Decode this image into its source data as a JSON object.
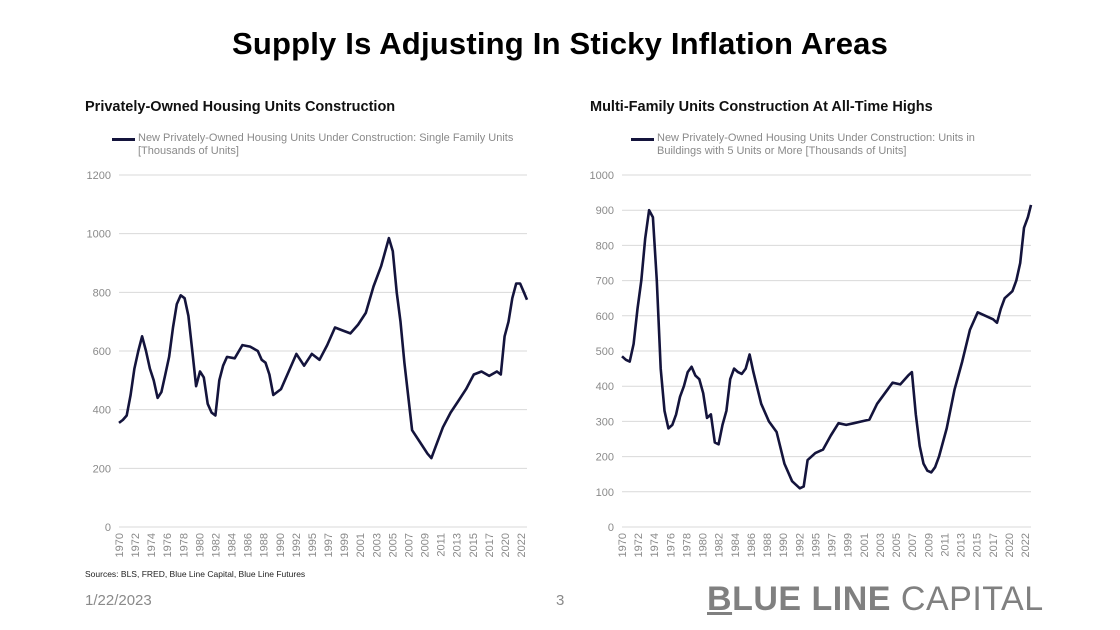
{
  "page": {
    "title": "Supply Is Adjusting In Sticky Inflation Areas",
    "sources": "Sources: BLS, FRED, Blue Line Capital, Blue Line Futures",
    "date": "1/22/2023",
    "page_number": "3",
    "brand": {
      "bold": "BLUE LINE",
      "light": " CAPITAL"
    },
    "line_color": "#14143c",
    "grid_color": "#d9d9d9"
  },
  "chart_data": [
    {
      "type": "line",
      "title": "Privately-Owned Housing Units Construction",
      "legend": "New Privately-Owned Housing Units Under Construction: Single Family Units [Thousands of Units]",
      "legend_placement": "top-left",
      "xlabel": "",
      "ylabel": "",
      "ylim": [
        0,
        1200
      ],
      "yticks": [
        0,
        200,
        400,
        600,
        800,
        1000,
        1200
      ],
      "xlim": [
        1970,
        2022.9
      ],
      "xtick_labels": [
        "1970",
        "1972",
        "1974",
        "1976",
        "1978",
        "1980",
        "1982",
        "1984",
        "1986",
        "1988",
        "1990",
        "1992",
        "1995",
        "1997",
        "1999",
        "2001",
        "2003",
        "2005",
        "2007",
        "2009",
        "2011",
        "2013",
        "2015",
        "2017",
        "2020",
        "2022"
      ],
      "grid": true,
      "series": [
        {
          "name": "Single Family Units",
          "x": [
            1970,
            1970.5,
            1971,
            1971.5,
            1972,
            1972.5,
            1973,
            1973.5,
            1974,
            1974.5,
            1975,
            1975.5,
            1976,
            1976.5,
            1977,
            1977.5,
            1978,
            1978.5,
            1979,
            1979.5,
            1980,
            1980.5,
            1981,
            1981.5,
            1982,
            1982.5,
            1983,
            1983.5,
            1984,
            1985,
            1986,
            1987,
            1988,
            1988.5,
            1989,
            1989.5,
            1990,
            1991,
            1992,
            1993,
            1994,
            1995,
            1996,
            1997,
            1998,
            1999,
            2000,
            2001,
            2002,
            2003,
            2004,
            2005,
            2005.5,
            2006,
            2006.5,
            2007,
            2008,
            2009,
            2010,
            2010.5,
            2011,
            2012,
            2013,
            2014,
            2015,
            2016,
            2017,
            2018,
            2019,
            2019.5,
            2020,
            2020.5,
            2021,
            2021.5,
            2022,
            2022.5,
            2022.9
          ],
          "values": [
            355,
            365,
            380,
            450,
            540,
            600,
            650,
            600,
            540,
            500,
            440,
            460,
            520,
            580,
            680,
            760,
            790,
            780,
            720,
            600,
            480,
            530,
            510,
            420,
            390,
            380,
            500,
            550,
            580,
            575,
            620,
            615,
            600,
            570,
            560,
            520,
            450,
            470,
            530,
            590,
            550,
            590,
            570,
            620,
            680,
            670,
            660,
            690,
            730,
            820,
            890,
            985,
            940,
            800,
            700,
            560,
            330,
            290,
            250,
            235,
            270,
            340,
            390,
            430,
            470,
            520,
            530,
            515,
            530,
            520,
            650,
            700,
            780,
            830,
            830,
            800,
            775
          ]
        }
      ]
    },
    {
      "type": "line",
      "title": "Multi-Family Units Construction At All-Time Highs",
      "legend": "New Privately-Owned Housing Units Under Construction: Units in Buildings with 5 Units or More [Thousands of Units]",
      "legend_placement": "top-left",
      "xlabel": "",
      "ylabel": "",
      "ylim": [
        0,
        1000
      ],
      "yticks": [
        0,
        100,
        200,
        300,
        400,
        500,
        600,
        700,
        800,
        900,
        1000
      ],
      "xlim": [
        1970,
        2022.9
      ],
      "xtick_labels": [
        "1970",
        "1972",
        "1974",
        "1976",
        "1978",
        "1980",
        "1982",
        "1984",
        "1986",
        "1988",
        "1990",
        "1992",
        "1995",
        "1997",
        "1999",
        "2001",
        "2003",
        "2005",
        "2007",
        "2009",
        "2011",
        "2013",
        "2015",
        "2017",
        "2020",
        "2022"
      ],
      "grid": true,
      "series": [
        {
          "name": "Units in Buildings with 5 Units or More",
          "x": [
            1970,
            1970.5,
            1971,
            1971.5,
            1972,
            1972.5,
            1973,
            1973.5,
            1974,
            1974.5,
            1975,
            1975.5,
            1976,
            1976.5,
            1977,
            1977.5,
            1978,
            1978.5,
            1979,
            1979.5,
            1980,
            1980.5,
            1981,
            1981.5,
            1982,
            1982.5,
            1983,
            1983.5,
            1984,
            1984.5,
            1985,
            1985.5,
            1986,
            1986.5,
            1987,
            1988,
            1989,
            1990,
            1991,
            1992,
            1992.5,
            1993,
            1993.5,
            1994,
            1995,
            1996,
            1997,
            1998,
            1999,
            2000,
            2001,
            2002,
            2003,
            2004,
            2005,
            2006,
            2007,
            2007.5,
            2008,
            2008.5,
            2009,
            2009.5,
            2010,
            2010.5,
            2011,
            2012,
            2013,
            2014,
            2015,
            2016,
            2017,
            2018,
            2018.5,
            2019,
            2019.5,
            2020,
            2020.5,
            2021,
            2021.5,
            2022,
            2022.5,
            2022.9
          ],
          "values": [
            485,
            475,
            470,
            520,
            620,
            700,
            820,
            900,
            880,
            700,
            450,
            330,
            280,
            290,
            320,
            370,
            400,
            440,
            455,
            430,
            420,
            380,
            310,
            320,
            240,
            235,
            290,
            330,
            420,
            450,
            440,
            435,
            450,
            490,
            440,
            350,
            300,
            270,
            180,
            130,
            120,
            110,
            115,
            190,
            210,
            220,
            260,
            295,
            290,
            295,
            300,
            305,
            350,
            380,
            410,
            405,
            430,
            440,
            320,
            230,
            180,
            160,
            155,
            170,
            200,
            280,
            390,
            470,
            560,
            610,
            600,
            590,
            580,
            620,
            650,
            660,
            670,
            700,
            750,
            850,
            880,
            915
          ]
        }
      ]
    }
  ]
}
